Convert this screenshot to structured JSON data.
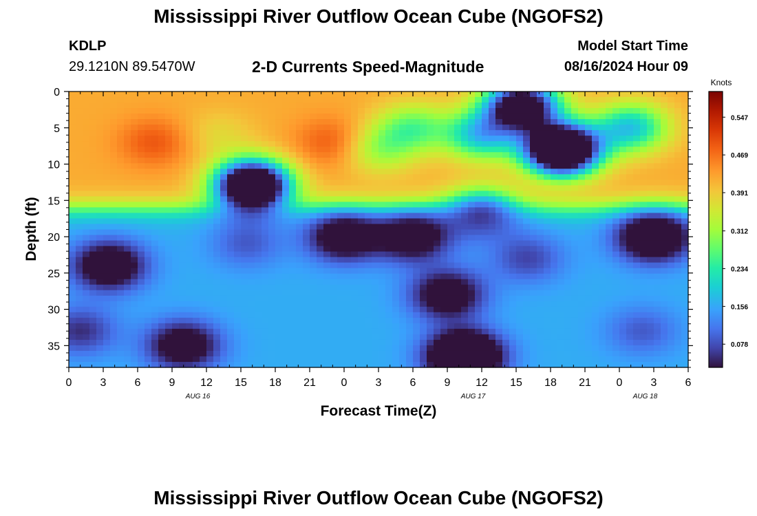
{
  "header": {
    "title": "Mississippi River Outflow Ocean Cube (NGOFS2)",
    "station_id": "KDLP",
    "station_coords": "29.1210N  89.5470W",
    "subtitle": "2-D Currents Speed-Magnitude",
    "model_start_label": "Model Start Time",
    "model_start_value": "08/16/2024 Hour 09"
  },
  "footer": {
    "title": "Mississippi River Outflow Ocean Cube (NGOFS2)"
  },
  "chart_data": {
    "type": "heatmap",
    "title": "2-D Currents Speed-Magnitude",
    "xlabel": "Forecast Time(Z)",
    "ylabel": "Depth (ft)",
    "x_ticks": [
      "0",
      "3",
      "6",
      "9",
      "12",
      "15",
      "18",
      "21",
      "0",
      "3",
      "6",
      "9",
      "12",
      "15",
      "18",
      "21",
      "0",
      "3",
      "6"
    ],
    "date_labels": [
      {
        "label": "AUG 16",
        "tick_index": 3.75
      },
      {
        "label": "AUG 17",
        "tick_index": 11.75
      },
      {
        "label": "AUG 18",
        "tick_index": 16.75
      }
    ],
    "x_range_hours": [
      0,
      54
    ],
    "y_ticks": [
      0,
      5,
      10,
      15,
      20,
      25,
      30,
      35
    ],
    "y_range_ft": [
      0,
      38
    ],
    "colorbar": {
      "unit": "Knots",
      "ticks": [
        0.078,
        0.156,
        0.234,
        0.312,
        0.391,
        0.469,
        0.547
      ],
      "range": [
        0.03,
        0.6
      ]
    },
    "features": [
      {
        "hour": 7.5,
        "depth": 7,
        "speed": 0.5
      },
      {
        "hour": 2.0,
        "depth": 6,
        "speed": 0.42
      },
      {
        "hour": 13.0,
        "depth": 6,
        "speed": 0.37
      },
      {
        "hour": 16.0,
        "depth": 13,
        "speed": -0.27
      },
      {
        "hour": 15.5,
        "depth": 21,
        "speed": 0.08
      },
      {
        "hour": 23.0,
        "depth": 7,
        "speed": 0.5
      },
      {
        "hour": 30.0,
        "depth": 5,
        "speed": 0.26
      },
      {
        "hour": 27.0,
        "depth": 8,
        "speed": 0.3
      },
      {
        "hour": 36.0,
        "depth": 6,
        "speed": 0.16
      },
      {
        "hour": 43.0,
        "depth": 8,
        "speed": -0.32
      },
      {
        "hour": 39.5,
        "depth": 2,
        "speed": -0.12
      },
      {
        "hour": 52.0,
        "depth": 7,
        "speed": 0.42
      },
      {
        "hour": 49.0,
        "depth": 5,
        "speed": 0.16
      },
      {
        "hour": 36.0,
        "depth": 17,
        "speed": 0.05
      },
      {
        "hour": 3.5,
        "depth": 24,
        "speed": -0.07
      },
      {
        "hour": 24.0,
        "depth": 20,
        "speed": -0.06
      },
      {
        "hour": 30.0,
        "depth": 20,
        "speed": -0.05
      },
      {
        "hour": 33.0,
        "depth": 28,
        "speed": -0.05
      },
      {
        "hour": 34.5,
        "depth": 36.5,
        "speed": -0.2
      },
      {
        "hour": 51.0,
        "depth": 20,
        "speed": -0.11
      },
      {
        "hour": 10.0,
        "depth": 35,
        "speed": -0.05
      },
      {
        "hour": 50.0,
        "depth": 33,
        "speed": 0.08
      },
      {
        "hour": 1.0,
        "depth": 33,
        "speed": 0.04
      },
      {
        "hour": 40.0,
        "depth": 23,
        "speed": 0.06
      }
    ]
  }
}
